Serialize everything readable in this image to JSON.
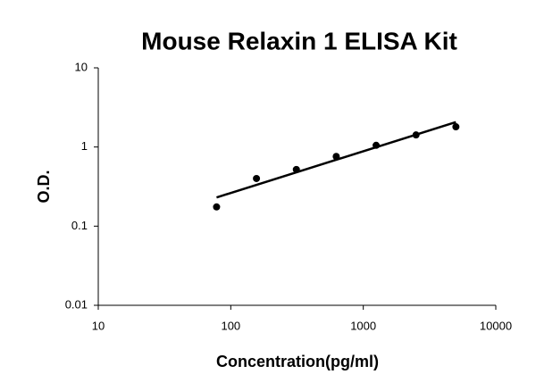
{
  "chart_data": {
    "type": "scatter",
    "title": "Mouse Relaxin 1 ELISA Kit",
    "x_label": "Concentration(pg/ml)",
    "y_label": "O.D.",
    "x": [
      78.125,
      156.25,
      312.5,
      625,
      1250,
      2500,
      5000
    ],
    "values": [
      0.175,
      0.4,
      0.52,
      0.76,
      1.05,
      1.42,
      1.8
    ],
    "color": "#000000",
    "trendline": true,
    "xscale": "log",
    "yscale": "log",
    "xlim": [
      10,
      10000
    ],
    "xticks": [
      10,
      100,
      1000,
      10000
    ],
    "ylim": [
      0.01,
      10
    ],
    "yticks": [
      0.01,
      0.1,
      1,
      10
    ],
    "grid": false
  }
}
